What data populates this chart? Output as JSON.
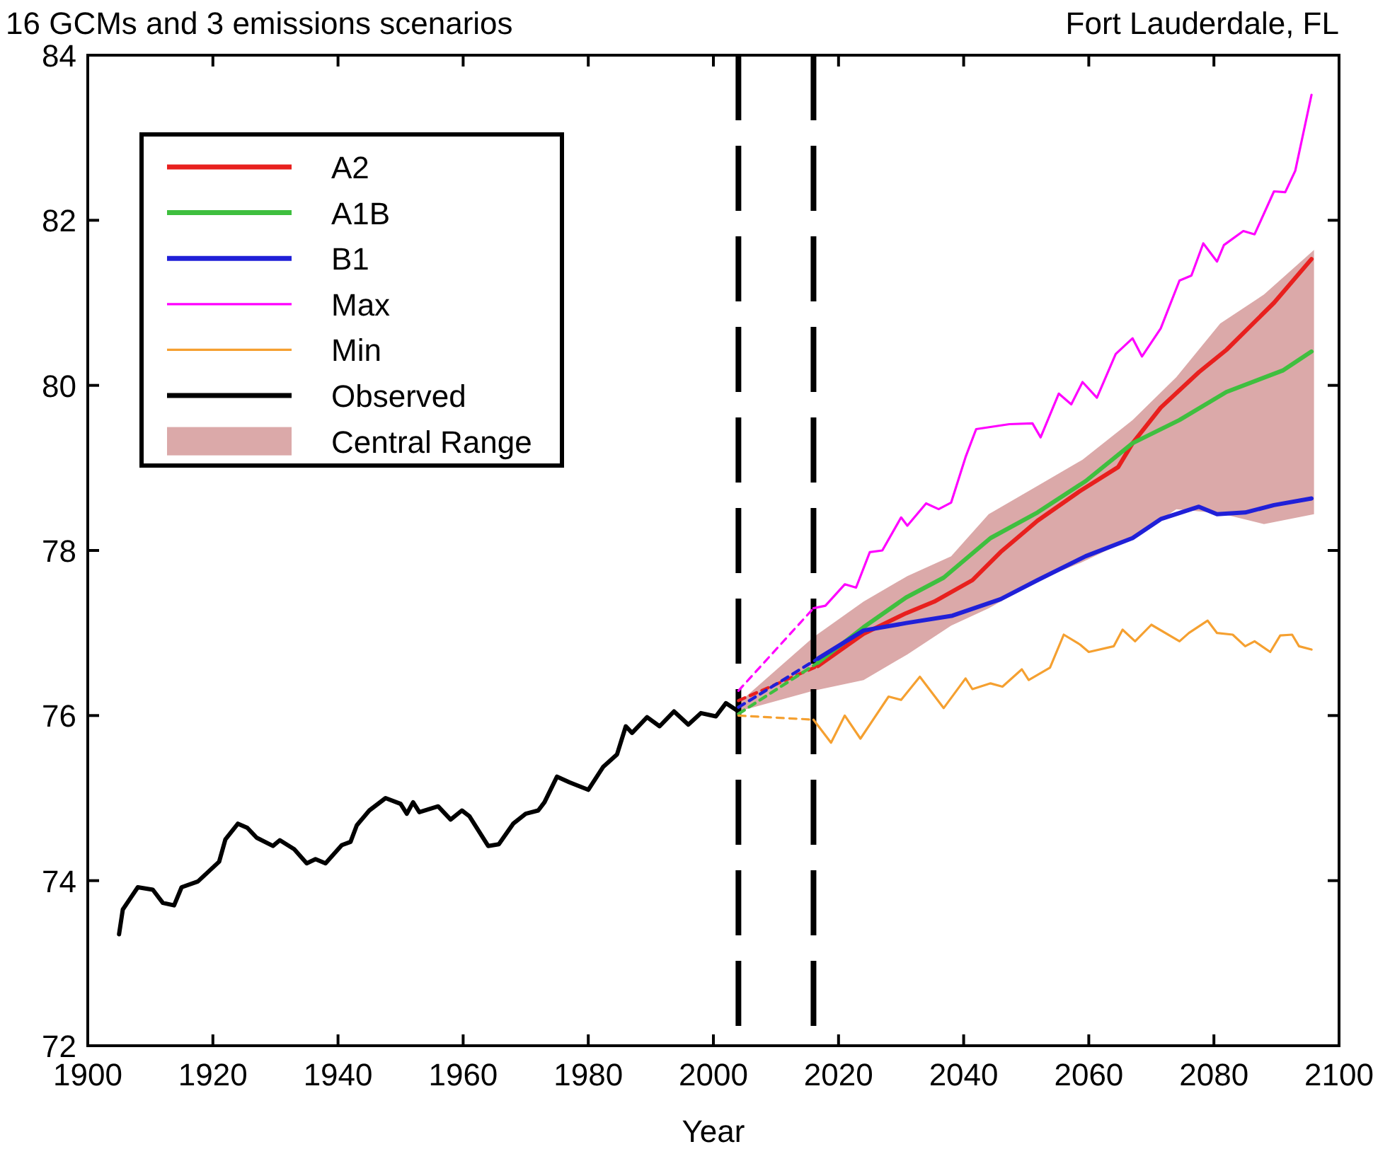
{
  "chart_data": {
    "type": "line",
    "title": "16 GCMs and 3 emissions scenarios",
    "subtitle": "Fort Lauderdale, FL",
    "xlabel": "Year",
    "xlim": [
      1900,
      2100
    ],
    "xticks": [
      1900,
      1920,
      1940,
      1960,
      1980,
      2000,
      2020,
      2040,
      2060,
      2080,
      2100
    ],
    "ylim": [
      72,
      84
    ],
    "yticks": [
      72,
      74,
      76,
      78,
      80,
      82,
      84
    ],
    "grid": false,
    "legend": "top left",
    "line_style": "solid",
    "marker": "none",
    "ref_lines": [
      {
        "axis": "x",
        "value": 2004,
        "label": null,
        "color": "#000000",
        "line_style": "dashed"
      },
      {
        "axis": "x",
        "value": 2016,
        "label": null,
        "color": "#000000",
        "line_style": "dashed"
      }
    ],
    "series": [
      {
        "name": "A2",
        "color": "#e8201e",
        "x": [
          2016.7,
          2024,
          2030.8,
          2035.3,
          2041.4,
          2045.9,
          2051.8,
          2058.6,
          2064.7,
          2067,
          2071.5,
          2077.6,
          2082,
          2089.6,
          2095.6
        ],
        "values": [
          76.6,
          76.99,
          77.24,
          77.38,
          77.64,
          77.98,
          78.36,
          78.72,
          79.01,
          79.3,
          79.73,
          80.16,
          80.43,
          81.0,
          81.53
        ]
      },
      {
        "name": "A1B",
        "color": "#3fbf3f",
        "x": [
          2016.7,
          2024,
          2030.8,
          2036.8,
          2044.3,
          2051.8,
          2059.5,
          2067,
          2074.5,
          2082,
          2091,
          2095.6
        ],
        "values": [
          76.64,
          77.07,
          77.43,
          77.67,
          78.15,
          78.46,
          78.84,
          79.3,
          79.58,
          79.92,
          80.18,
          80.41
        ]
      },
      {
        "name": "B1",
        "color": "#2020d8",
        "x": [
          2016.7,
          2024,
          2030.8,
          2038.2,
          2045.9,
          2051.8,
          2059.5,
          2067,
          2071.5,
          2077.6,
          2080.5,
          2085,
          2089.6,
          2095.6
        ],
        "values": [
          76.69,
          77.03,
          77.12,
          77.21,
          77.41,
          77.64,
          77.93,
          78.15,
          78.38,
          78.53,
          78.44,
          78.46,
          78.55,
          78.63
        ]
      },
      {
        "name": "Max",
        "color": "#ff00ff",
        "x": [
          2016,
          2017.9,
          2021,
          2022.8,
          2025,
          2027,
          2030,
          2031,
          2034,
          2036,
          2038,
          2040.3,
          2042,
          2047.3,
          2051,
          2052.3,
          2055.2,
          2057.2,
          2059,
          2061.3,
          2064.3,
          2067,
          2068.5,
          2071.5,
          2074.5,
          2076.4,
          2078.3,
          2080.5,
          2081.6,
          2084.7,
          2086.5,
          2089.6,
          2091.4,
          2093,
          2095.6
        ],
        "values": [
          77.3,
          77.33,
          77.59,
          77.55,
          77.98,
          78.0,
          78.4,
          78.3,
          78.57,
          78.5,
          78.58,
          79.13,
          79.47,
          79.53,
          79.54,
          79.37,
          79.9,
          79.77,
          80.04,
          79.85,
          80.38,
          80.57,
          80.35,
          80.69,
          81.27,
          81.33,
          81.72,
          81.5,
          81.7,
          81.87,
          81.83,
          82.35,
          82.34,
          82.6,
          83.52
        ]
      },
      {
        "name": "Min",
        "color": "#f5a030",
        "x": [
          2016,
          2018.8,
          2021,
          2023.5,
          2028,
          2030,
          2033,
          2036.8,
          2040.3,
          2041.4,
          2044.3,
          2046.2,
          2049.3,
          2050.4,
          2053.8,
          2056,
          2058.6,
          2060,
          2064,
          2065.4,
          2067.4,
          2070,
          2074.5,
          2076,
          2079,
          2080.5,
          2083,
          2085,
          2086.5,
          2089,
          2090.6,
          2092.5,
          2093.6,
          2095.6
        ],
        "values": [
          75.95,
          75.67,
          76.0,
          75.72,
          76.23,
          76.19,
          76.47,
          76.09,
          76.45,
          76.32,
          76.39,
          76.35,
          76.56,
          76.43,
          76.58,
          76.98,
          76.86,
          76.77,
          76.84,
          77.04,
          76.9,
          77.1,
          76.9,
          77.0,
          77.15,
          77.0,
          76.98,
          76.84,
          76.9,
          76.77,
          76.97,
          76.98,
          76.84,
          76.8
        ]
      },
      {
        "name": "Observed",
        "color": "#000000",
        "x": [
          1905,
          1905.6,
          1908,
          1910.4,
          1912,
          1913.8,
          1915,
          1917.6,
          1921,
          1922,
          1924,
          1925.5,
          1927,
          1929.6,
          1930.7,
          1933,
          1935,
          1936.4,
          1938,
          1940.6,
          1942,
          1943,
          1945,
          1947.6,
          1950,
          1951,
          1952,
          1953,
          1956,
          1958,
          1959.8,
          1961,
          1964,
          1965.7,
          1968,
          1970,
          1972,
          1973,
          1975,
          1977,
          1980,
          1982.4,
          1984.6,
          1986,
          1987,
          1989.4,
          1991.4,
          1993.7,
          1996,
          1998,
          2000.4,
          2002,
          2003.8
        ],
        "values": [
          73.35,
          73.65,
          73.92,
          73.89,
          73.73,
          73.7,
          73.92,
          73.99,
          74.23,
          74.5,
          74.69,
          74.64,
          74.52,
          74.42,
          74.49,
          74.38,
          74.21,
          74.26,
          74.21,
          74.43,
          74.47,
          74.67,
          74.85,
          75.0,
          74.93,
          74.81,
          74.95,
          74.83,
          74.9,
          74.74,
          74.85,
          74.78,
          74.42,
          74.44,
          74.69,
          74.81,
          74.85,
          74.95,
          75.26,
          75.19,
          75.1,
          75.38,
          75.53,
          75.87,
          75.79,
          75.98,
          75.87,
          76.05,
          75.89,
          76.03,
          75.99,
          76.15,
          76.06
        ]
      },
      {
        "type": "area",
        "name": "Central Range",
        "color": "#dba9a9",
        "x": [
          2004,
          2016,
          2024,
          2031,
          2038,
          2044,
          2052,
          2059,
          2067,
          2074,
          2081,
          2088,
          2096
        ],
        "values": [
          null,
          null,
          null,
          null,
          null,
          null,
          null,
          null,
          null,
          null,
          null,
          null,
          null
        ],
        "lower": [
          76.05,
          76.3,
          76.43,
          76.74,
          77.09,
          77.3,
          77.64,
          77.86,
          78.15,
          78.5,
          78.45,
          78.32,
          78.44
        ],
        "upper": [
          76.15,
          76.95,
          77.38,
          77.69,
          77.93,
          78.44,
          78.79,
          79.1,
          79.58,
          80.1,
          80.75,
          81.1,
          81.64
        ]
      },
      {
        "color": "#e8201e",
        "line_style": "dashed",
        "x": [
          2004,
          2016.7
        ],
        "values": [
          76.18,
          76.6
        ]
      },
      {
        "color": "#3fbf3f",
        "line_style": "dashed",
        "x": [
          2004,
          2016.7
        ],
        "values": [
          76.02,
          76.64
        ]
      },
      {
        "color": "#2020d8",
        "line_style": "dashed",
        "x": [
          2004,
          2016.7
        ],
        "values": [
          76.1,
          76.69
        ]
      },
      {
        "color": "#ff00ff",
        "line_style": "dashed",
        "x": [
          2004,
          2016
        ],
        "values": [
          76.3,
          77.3
        ]
      },
      {
        "color": "#f5a030",
        "line_style": "dashed",
        "x": [
          2004,
          2016
        ],
        "values": [
          76.0,
          75.95
        ]
      }
    ]
  }
}
